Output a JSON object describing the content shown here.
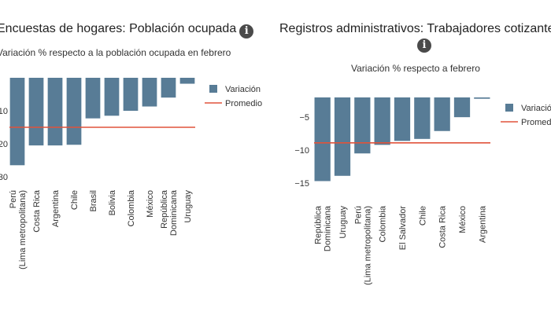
{
  "chart_data": [
    {
      "type": "bar",
      "title": "Encuestas de hogares: Población ocupada",
      "subtitle": "Variación % respecto a la población ocupada en febrero",
      "categories": [
        [
          "Perú",
          "(Lima metropolitana)"
        ],
        [
          "Costa Rica"
        ],
        [
          "Argentina"
        ],
        [
          "Chile"
        ],
        [
          "Brasil"
        ],
        [
          "Bolivia"
        ],
        [
          "Colombia"
        ],
        [
          "México"
        ],
        [
          "República",
          "Dominicana"
        ],
        [
          "Uruguay"
        ]
      ],
      "series": [
        {
          "name": "Variación",
          "values": [
            -26.5,
            -20.5,
            -20.5,
            -20.3,
            -12.3,
            -11.5,
            -10.0,
            -8.7,
            -6.0,
            -1.8
          ]
        }
      ],
      "average": {
        "name": "Promedio",
        "value": -15.0
      },
      "ylim": [
        0,
        -30
      ],
      "yticks": [
        -10,
        -20,
        -30
      ],
      "ytick_labels": [
        "10",
        "20",
        "30"
      ],
      "legend": [
        "Variación",
        "Promedio"
      ],
      "colors": {
        "bar": "#587c96",
        "average": "#e0533b"
      }
    },
    {
      "type": "bar",
      "title": "Registros administrativos: Trabajadores cotizantes",
      "subtitle": "Variación % respecto a febrero",
      "categories": [
        [
          "República",
          "Dominicana"
        ],
        [
          "Uruguay"
        ],
        [
          "Perú",
          "(Lima metropolitana)"
        ],
        [
          "Colombia"
        ],
        [
          "El Salvador"
        ],
        [
          "Chile"
        ],
        [
          "Costa Rica"
        ],
        [
          "México"
        ],
        [
          "Argentina"
        ]
      ],
      "series": [
        {
          "name": "Variación",
          "values": [
            -14.7,
            -13.9,
            -10.5,
            -9.2,
            -8.6,
            -8.3,
            -7.1,
            -5.0,
            -2.2
          ]
        }
      ],
      "average": {
        "name": "Promedio",
        "value": -8.9
      },
      "ylim": [
        -2,
        -15
      ],
      "yticks": [
        -5,
        -10,
        -15
      ],
      "ytick_labels": [
        "−5",
        "−10",
        "−15"
      ],
      "legend": [
        "Variación",
        "Promedio"
      ],
      "colors": {
        "bar": "#587c96",
        "average": "#e0533b"
      }
    }
  ]
}
